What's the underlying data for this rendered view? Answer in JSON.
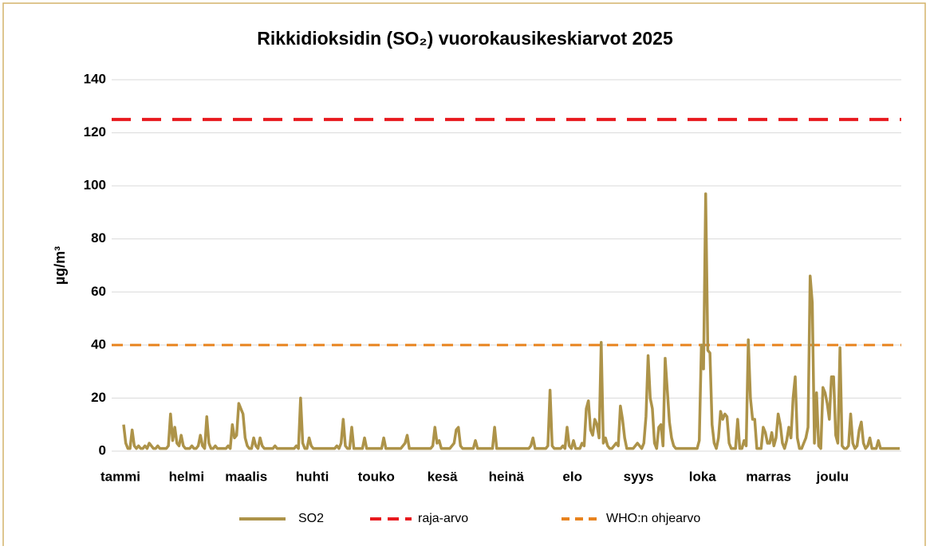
{
  "chart_data": {
    "type": "line",
    "title": "Rikkidioksidin (SO₂) vuorokausikeskiarvot 2025",
    "y_label": "µg/m³",
    "ylim": [
      0,
      140
    ],
    "yticks": [
      0,
      20,
      40,
      60,
      80,
      100,
      120,
      140
    ],
    "grid": true,
    "legend": "bottom",
    "categories": [
      "tammi",
      null,
      null,
      null,
      null,
      null,
      null,
      null,
      null,
      null,
      null,
      null,
      null,
      null,
      null,
      null,
      null,
      null,
      null,
      null,
      null,
      null,
      null,
      null,
      null,
      null,
      null,
      null,
      null,
      null,
      null,
      "helmi",
      null,
      null,
      null,
      null,
      null,
      null,
      null,
      null,
      null,
      null,
      null,
      null,
      null,
      null,
      null,
      null,
      null,
      null,
      null,
      null,
      null,
      null,
      null,
      null,
      null,
      null,
      null,
      "maalis",
      null,
      null,
      null,
      null,
      null,
      null,
      null,
      null,
      null,
      null,
      null,
      null,
      null,
      null,
      null,
      null,
      null,
      null,
      null,
      null,
      null,
      null,
      null,
      null,
      null,
      null,
      null,
      null,
      null,
      null,
      "huhti",
      null,
      null,
      null,
      null,
      null,
      null,
      null,
      null,
      null,
      null,
      null,
      null,
      null,
      null,
      null,
      null,
      null,
      null,
      null,
      null,
      null,
      null,
      null,
      null,
      null,
      null,
      null,
      null,
      null,
      "touko",
      null,
      null,
      null,
      null,
      null,
      null,
      null,
      null,
      null,
      null,
      null,
      null,
      null,
      null,
      null,
      null,
      null,
      null,
      null,
      null,
      null,
      null,
      null,
      null,
      null,
      null,
      null,
      null,
      null,
      null,
      "kesä",
      null,
      null,
      null,
      null,
      null,
      null,
      null,
      null,
      null,
      null,
      null,
      null,
      null,
      null,
      null,
      null,
      null,
      null,
      null,
      null,
      null,
      null,
      null,
      null,
      null,
      null,
      null,
      null,
      null,
      "heinä",
      null,
      null,
      null,
      null,
      null,
      null,
      null,
      null,
      null,
      null,
      null,
      null,
      null,
      null,
      null,
      null,
      null,
      null,
      null,
      null,
      null,
      null,
      null,
      null,
      null,
      null,
      null,
      null,
      null,
      null,
      "elo",
      null,
      null,
      null,
      null,
      null,
      null,
      null,
      null,
      null,
      null,
      null,
      null,
      null,
      null,
      null,
      null,
      null,
      null,
      null,
      null,
      null,
      null,
      null,
      null,
      null,
      null,
      null,
      null,
      null,
      null,
      "syys",
      null,
      null,
      null,
      null,
      null,
      null,
      null,
      null,
      null,
      null,
      null,
      null,
      null,
      null,
      null,
      null,
      null,
      null,
      null,
      null,
      null,
      null,
      null,
      null,
      null,
      null,
      null,
      null,
      null,
      "loka",
      null,
      null,
      null,
      null,
      null,
      null,
      null,
      null,
      null,
      null,
      null,
      null,
      null,
      null,
      null,
      null,
      null,
      null,
      null,
      null,
      null,
      null,
      null,
      null,
      null,
      null,
      null,
      null,
      null,
      null,
      "marras",
      null,
      null,
      null,
      null,
      null,
      null,
      null,
      null,
      null,
      null,
      null,
      null,
      null,
      null,
      null,
      null,
      null,
      null,
      null,
      null,
      null,
      null,
      null,
      null,
      null,
      null,
      null,
      null,
      null,
      "joulu",
      null,
      null,
      null,
      null,
      null,
      null,
      null,
      null,
      null,
      null,
      null,
      null,
      null,
      null,
      null,
      null,
      null,
      null,
      null,
      null,
      null,
      null,
      null,
      null,
      null,
      null,
      null,
      null,
      null,
      null
    ],
    "series": [
      {
        "name": "SO2",
        "color": "#ad9349",
        "values": [
          10,
          3,
          1,
          1,
          8,
          2,
          1,
          2,
          1,
          1,
          2,
          1,
          3,
          2,
          1,
          1,
          2,
          1,
          1,
          1,
          1,
          2,
          14,
          4,
          9,
          3,
          2,
          6,
          2,
          1,
          1,
          1,
          2,
          1,
          1,
          2,
          6,
          2,
          1,
          13,
          3,
          1,
          1,
          2,
          1,
          1,
          1,
          1,
          1,
          2,
          1,
          10,
          5,
          6,
          18,
          16,
          14,
          5,
          2,
          1,
          1,
          5,
          2,
          1,
          5,
          2,
          1,
          1,
          1,
          1,
          1,
          2,
          1,
          1,
          1,
          1,
          1,
          1,
          1,
          1,
          1,
          2,
          1,
          20,
          3,
          1,
          1,
          5,
          2,
          1,
          1,
          1,
          1,
          1,
          1,
          1,
          1,
          1,
          1,
          1,
          2,
          1,
          3,
          12,
          2,
          1,
          1,
          9,
          1,
          1,
          1,
          1,
          1,
          5,
          1,
          1,
          1,
          1,
          1,
          1,
          1,
          1,
          5,
          1,
          1,
          1,
          1,
          1,
          1,
          1,
          1,
          2,
          3,
          6,
          1,
          1,
          1,
          1,
          1,
          1,
          1,
          1,
          1,
          1,
          1,
          2,
          9,
          3,
          4,
          1,
          1,
          1,
          1,
          1,
          2,
          3,
          8,
          9,
          2,
          1,
          1,
          1,
          1,
          1,
          1,
          4,
          1,
          1,
          1,
          1,
          1,
          1,
          1,
          1,
          9,
          1,
          1,
          1,
          1,
          1,
          1,
          1,
          1,
          1,
          1,
          1,
          1,
          1,
          1,
          1,
          1,
          2,
          5,
          1,
          1,
          1,
          1,
          1,
          1,
          2,
          23,
          2,
          1,
          1,
          1,
          1,
          2,
          1,
          9,
          2,
          1,
          4,
          1,
          1,
          1,
          3,
          2,
          16,
          19,
          8,
          6,
          12,
          10,
          5,
          41,
          3,
          5,
          2,
          1,
          1,
          2,
          3,
          2,
          17,
          12,
          5,
          1,
          1,
          1,
          1,
          2,
          3,
          2,
          1,
          3,
          13,
          36,
          20,
          16,
          3,
          1,
          9,
          10,
          2,
          35,
          23,
          11,
          5,
          2,
          1,
          1,
          1,
          1,
          1,
          1,
          1,
          1,
          1,
          1,
          1,
          4,
          40,
          31,
          97,
          38,
          37,
          10,
          3,
          1,
          5,
          15,
          12,
          14,
          13,
          3,
          1,
          1,
          1,
          12,
          1,
          1,
          4,
          2,
          42,
          20,
          12,
          12,
          1,
          1,
          1,
          9,
          7,
          3,
          3,
          7,
          2,
          5,
          14,
          10,
          3,
          1,
          4,
          9,
          5,
          20,
          28,
          5,
          1,
          1,
          3,
          5,
          9,
          66,
          56,
          3,
          22,
          2,
          1,
          24,
          22,
          18,
          12,
          28,
          28,
          6,
          3,
          39,
          2,
          1,
          1,
          2,
          14,
          3,
          1,
          2,
          8,
          11,
          3,
          1,
          2,
          5,
          1,
          1,
          1,
          4,
          1,
          1,
          1,
          1,
          1,
          1,
          1,
          1,
          1,
          1
        ]
      }
    ],
    "reference_lines": [
      {
        "name": "raja-arvo",
        "value": 125,
        "color": "#e8191e"
      },
      {
        "name": "WHO:n ohjearvo",
        "value": 40,
        "color": "#e8831e"
      }
    ]
  }
}
